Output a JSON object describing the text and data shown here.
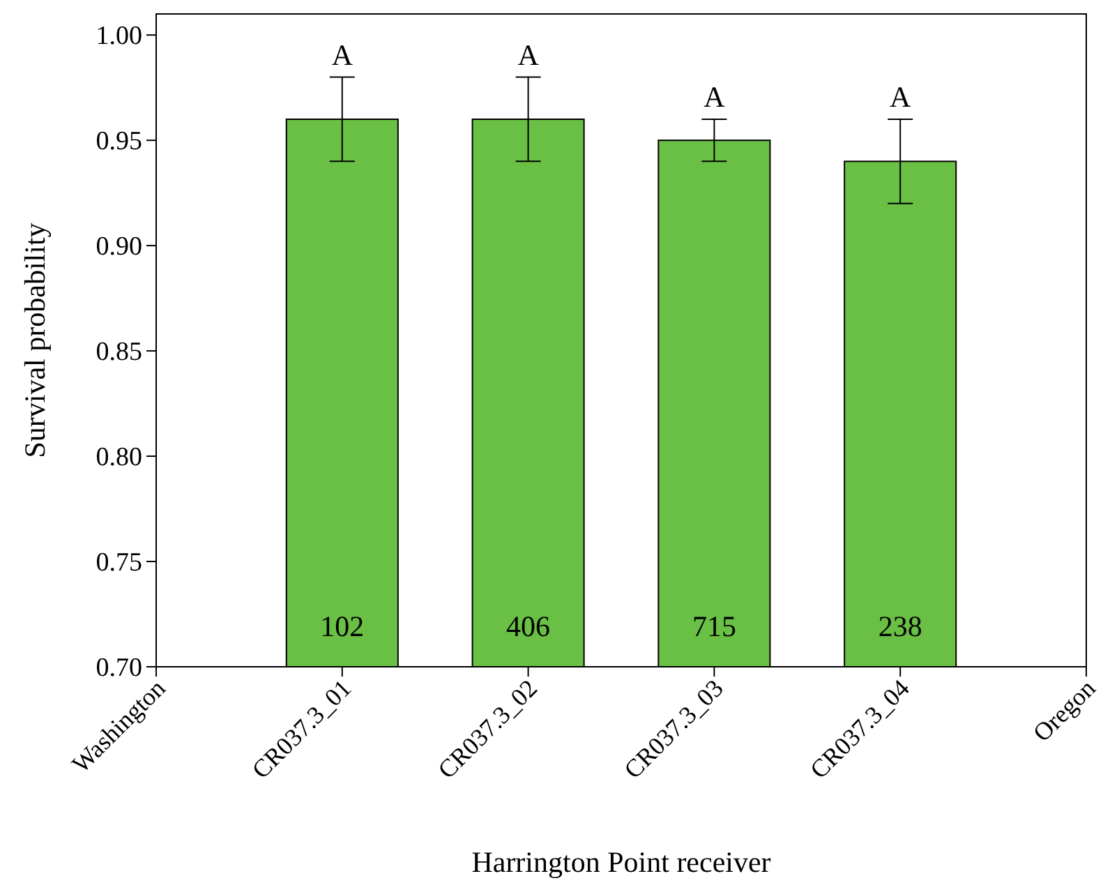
{
  "chart_data": {
    "type": "bar",
    "xlabel": "Harrington Point receiver",
    "ylabel": "Survival probability",
    "categories": [
      "Washington",
      "CR037.3_01",
      "CR037.3_02",
      "CR037.3_03",
      "CR037.3_04",
      "Oregon"
    ],
    "values": [
      null,
      0.96,
      0.96,
      0.95,
      0.94,
      null
    ],
    "errors": [
      null,
      [
        0.94,
        0.98
      ],
      [
        0.94,
        0.98
      ],
      [
        0.94,
        0.96
      ],
      [
        0.92,
        0.96
      ],
      null
    ],
    "color": "#6abf45",
    "ylim": [
      0.7,
      1.01
    ],
    "yticks": [
      {
        "value": 0.7,
        "label": "0.70"
      },
      {
        "value": 0.75,
        "label": "0.75"
      },
      {
        "value": 0.8,
        "label": "0.80"
      },
      {
        "value": 0.85,
        "label": "0.85"
      },
      {
        "value": 0.9,
        "label": "0.90"
      },
      {
        "value": 0.95,
        "label": "0.95"
      },
      {
        "value": 1.0,
        "label": "1.00"
      }
    ],
    "annotations": [
      {
        "text": "A",
        "x": "CR037.3_01",
        "y": 0.98
      },
      {
        "text": "A",
        "x": "CR037.3_02",
        "y": 0.98
      },
      {
        "text": "A",
        "x": "CR037.3_03",
        "y": 0.96
      },
      {
        "text": "A",
        "x": "CR037.3_04",
        "y": 0.96
      },
      "102",
      "406",
      "715",
      "238"
    ]
  }
}
